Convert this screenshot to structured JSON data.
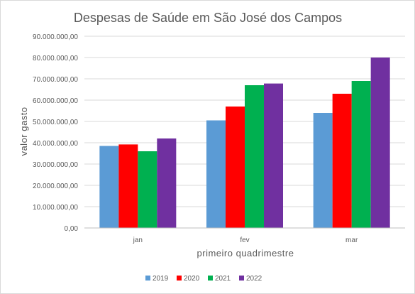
{
  "chart_data": {
    "type": "bar",
    "title": "Despesas de Saúde em São José dos Campos",
    "xlabel": "primeiro quadrimestre",
    "ylabel": "valor gasto",
    "categories": [
      "jan",
      "fev",
      "mar"
    ],
    "ylim": [
      0,
      90000000
    ],
    "yticks": [
      "0,00",
      "10.000.000,00",
      "20.000.000,00",
      "30.000.000,00",
      "40.000.000,00",
      "50.000.000,00",
      "60.000.000,00",
      "70.000.000,00",
      "80.000.000,00",
      "90.000.000,00"
    ],
    "grid": true,
    "legend_position": "bottom",
    "series": [
      {
        "name": "2019",
        "color": "#5b9bd5",
        "values": [
          38500000,
          50500000,
          54000000
        ]
      },
      {
        "name": "2020",
        "color": "#ff0000",
        "values": [
          39200000,
          57000000,
          63000000
        ]
      },
      {
        "name": "2021",
        "color": "#00b050",
        "values": [
          36000000,
          67000000,
          69000000
        ]
      },
      {
        "name": "2022",
        "color": "#7030a0",
        "values": [
          42000000,
          67800000,
          80000000
        ]
      }
    ]
  }
}
